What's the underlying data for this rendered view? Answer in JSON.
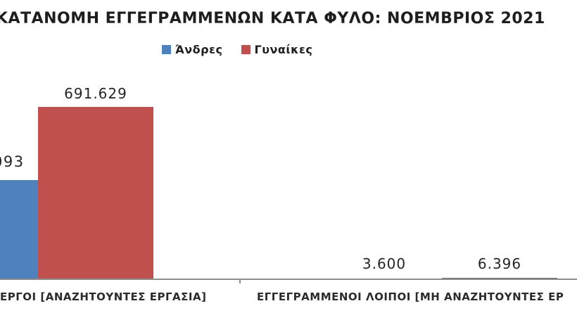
{
  "title": "ΚΑΤΑΝΟΜΗ ΕΓΓΕΓΡΑΜΜΕΝΩΝ ΚΑΤΑ ΦΥΛΟ: ΝΟΕΜΒΡΙΟΣ 2021",
  "legend": {
    "items": [
      {
        "label": "Άνδρες",
        "color": "#4F81BD"
      },
      {
        "label": "Γυναίκες",
        "color": "#C0504D"
      }
    ]
  },
  "value_labels": {
    "men_group1_clipped": "093",
    "women_group1": "691.629",
    "men_group2": "3.600",
    "women_group2": "6.396"
  },
  "categories": {
    "group1_clipped": "ΕΡΓΟΙ [ΑΝΑΖΗΤΟΥΝΤΕΣ ΕΡΓΑΣΙΑ]",
    "group2_clipped": "ΕΓΓΕΓΡΑΜΜΕΝΟΙ ΛΟΙΠΟΙ [ΜΗ ΑΝΑΖΗΤΟΥΝΤΕΣ ΕΡ"
  },
  "colors": {
    "men": "#4F81BD",
    "women": "#C0504D",
    "axis": "#8E8E8E",
    "text": "#262626"
  },
  "chart_data": {
    "type": "bar",
    "title": "ΚΑΤΑΝΟΜΗ ΕΓΓΕΓΡΑΜΜΕΝΩΝ ΚΑΤΑ ΦΥΛΟ: ΝΟΕΜΒΡΙΟΣ 2021",
    "categories": [
      "ΕΡΓΟΙ [ΑΝΑΖΗΤΟΥΝΤΕΣ ΕΡΓΑΣΙΑ]",
      "ΕΓΓΕΓΡΑΜΜΕΝΟΙ ΛΟΙΠΟΙ [ΜΗ ΑΝΑΖΗΤΟΥΝΤΕΣ ΕΡ"
    ],
    "series": [
      {
        "name": "Άνδρες",
        "color": "#4F81BD",
        "values": [
          397093,
          3600
        ],
        "display_labels": [
          "093",
          "3.600"
        ]
      },
      {
        "name": "Γυναίκες",
        "color": "#C0504D",
        "values": [
          691629,
          6396
        ],
        "display_labels": [
          "691.629",
          "6.396"
        ]
      }
    ],
    "ylim": [
      0,
      760000
    ],
    "grid": false,
    "legend_position": "top",
    "value_label_format": "thousands-dot",
    "clipping_note": "chart is cropped at left and right edges; first men bar, its value label and both category labels are partially cut off"
  }
}
